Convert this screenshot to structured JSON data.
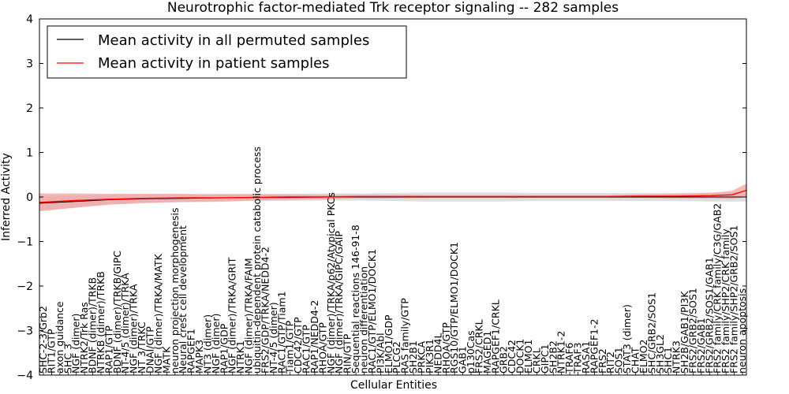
{
  "chart_data": {
    "type": "line",
    "title": "Neurotrophic factor-mediated Trk receptor signaling -- 282 samples",
    "xlabel": "Cellular Entities",
    "ylabel": "Inferred Activity",
    "ylim": [
      -4,
      4
    ],
    "yticks": [
      "−4",
      "−3",
      "−2",
      "−1",
      "0",
      "1",
      "2",
      "3",
      "4"
    ],
    "grid": false,
    "legend_position": "top-left",
    "legend": [
      "Mean activity in all permuted samples",
      "Mean activity in patient samples"
    ],
    "colors": {
      "permuted": "#000000",
      "patient": "#ff0000",
      "patient_band": "#f4a0a0",
      "permuted_band": "#c8c8c8"
    },
    "categories": [
      "SHC-2-3/Grb2",
      "RIT1/GTP",
      "axon guidance",
      "SHC 3",
      "NGF (dimer)",
      "NTRK2/Trk Ras",
      "BDNF (dimer)/TRKB",
      "NTRKB (dimer)/TRKB",
      "RAP1/GTP",
      "BDNF (dimer)/TRKB/GIPC",
      "NT-4/5 (dimer)/TRKA",
      "NGF (dimer)/TRKA",
      "NT 3/TRKC",
      "DNAI/GTP",
      "NGF (dimer)/TRKA/MATK",
      "MATK",
      "neuron projection morphogenesis",
      "Neural crest cell development",
      "RAPGEF1",
      "MAPK3",
      "NT3 (dimer)",
      "NGF (dimer)",
      "RAP1/GDP",
      "NGF (dimer)/TRKA/GRIT",
      "NTRK1",
      "NGF (dimer)/TRKA/FAIM",
      "ubiquitin-dependent protein catabolic process",
      "FRS2/GDP/TRKA/NEDD4-2",
      "NT-4/5 (dimer)",
      "RAC1/GTP/Tiam1",
      "Tiam1/GTP",
      "CDC42/GTP",
      "RAC1/GTP",
      "RAP1/NEDD4-2",
      "RHOA/GTP",
      "NGF (dimer)/TRKA/p62/Atypical PKCs",
      "NGF (dimer)/TRKA/GIPC/GAIP",
      "RIN/GTP",
      "Sequential reactions 146-91-8",
      "neuron differentiation",
      "RAC1/GTP/ELMO1/DOCK1",
      "PI3K/Abl",
      "ELMO1/GDP",
      "PLCG2",
      "RAS family/GTP",
      "SH2B1",
      "PRKCA",
      "PIK3R1",
      "NEDD4L",
      "RHOA/GTP",
      "RGS10/GTP/ELMO1/DOCK1",
      "GAB1",
      "p130Cas",
      "FRS2/CRKL",
      "MAGED1",
      "RAPGEF1/CRKL",
      "GRB2",
      "CDC42",
      "DOCK1",
      "ELMO1",
      "CRKL",
      "GIPC1",
      "SH2B2",
      "NTRK1-2",
      "TRAF6",
      "TRAF3",
      "RASA1",
      "RAPGEF1-2",
      "FRS2",
      "RIT2",
      "SOS1",
      "STAT3 (dimer)",
      "CHAT",
      "ELMO2",
      "SHC/GRB2/SOS1",
      "SH3GL2",
      "SHC1",
      "NTRK3",
      "SH2B/GAB1/PI3K",
      "FRS2/GRB2/SOS1",
      "FRS2/GAB1",
      "FRS2/GRB2/SOS1/GAB1",
      "FRS2 family/CRK family/C3G/GAB2",
      "FRS2 family/SHP2/CRK family",
      "FRS2 family/SHP2/GRB2/SOS1",
      "neuron apoptosis"
    ],
    "series": [
      {
        "name": "Mean activity in all permuted samples",
        "x": [
          0,
          0.05,
          0.1,
          0.15,
          0.2,
          0.25,
          0.3,
          0.35,
          0.4,
          0.45,
          0.5,
          0.55,
          0.6,
          0.65,
          0.7,
          0.75,
          0.8,
          0.85,
          0.9,
          0.95,
          1.0
        ],
        "values": [
          -0.14,
          -0.1,
          -0.06,
          -0.04,
          -0.03,
          -0.02,
          -0.01,
          -0.01,
          0.0,
          0.0,
          0.0,
          0.0,
          0.0,
          0.0,
          0.0,
          0.0,
          0.0,
          0.0,
          0.0,
          0.0,
          0.0
        ],
        "spread": [
          0.16,
          0.14,
          0.11,
          0.1,
          0.09,
          0.09,
          0.08,
          0.08,
          0.08,
          0.08,
          0.09,
          0.1,
          0.1,
          0.1,
          0.09,
          0.09,
          0.09,
          0.09,
          0.09,
          0.1,
          0.1
        ]
      },
      {
        "name": "Mean activity in patient samples",
        "x": [
          0,
          0.05,
          0.1,
          0.15,
          0.2,
          0.25,
          0.3,
          0.35,
          0.4,
          0.45,
          0.5,
          0.55,
          0.6,
          0.65,
          0.7,
          0.75,
          0.8,
          0.85,
          0.9,
          0.95,
          0.98,
          1.0
        ],
        "values": [
          -0.12,
          -0.08,
          -0.05,
          -0.03,
          -0.02,
          -0.02,
          -0.01,
          0.0,
          0.0,
          0.01,
          0.01,
          0.01,
          0.01,
          0.01,
          0.01,
          0.01,
          0.01,
          0.02,
          0.02,
          0.03,
          0.05,
          0.15
        ],
        "spread": [
          0.2,
          0.16,
          0.12,
          0.1,
          0.09,
          0.08,
          0.07,
          0.06,
          0.05,
          0.04,
          0.04,
          0.03,
          0.03,
          0.03,
          0.03,
          0.03,
          0.03,
          0.04,
          0.05,
          0.06,
          0.09,
          0.15
        ]
      }
    ]
  }
}
